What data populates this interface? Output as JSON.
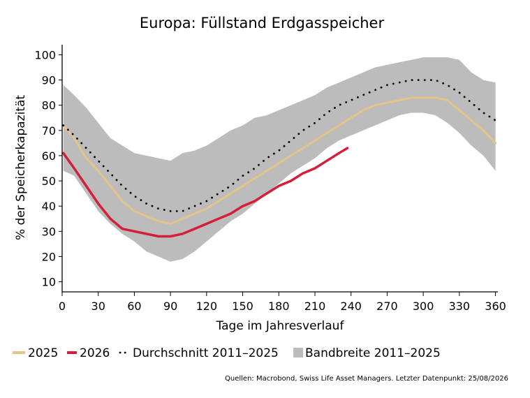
{
  "chart_data": {
    "type": "area",
    "title": "Europa: Füllstand Erdgasspeicher",
    "xlabel": "Tage im Jahresverlauf",
    "ylabel": "% der Speicherkapazität",
    "xlim": [
      0,
      362
    ],
    "ylim": [
      6,
      104
    ],
    "x_ticks": [
      0,
      30,
      60,
      90,
      120,
      150,
      180,
      210,
      240,
      270,
      300,
      330,
      360
    ],
    "y_ticks": [
      10,
      20,
      30,
      40,
      50,
      60,
      70,
      80,
      90,
      100
    ],
    "grid": false,
    "legend_position": "bottom",
    "band": {
      "name": "Bandbreite 2011–2025",
      "color": "#bcbcbc",
      "x": [
        1,
        10,
        20,
        30,
        40,
        50,
        60,
        70,
        80,
        90,
        100,
        110,
        120,
        130,
        140,
        150,
        160,
        170,
        180,
        190,
        200,
        210,
        220,
        230,
        240,
        250,
        260,
        270,
        280,
        290,
        300,
        310,
        320,
        330,
        340,
        350,
        360
      ],
      "lower": [
        54,
        52,
        45,
        38,
        33,
        29,
        26,
        22,
        20,
        18,
        19,
        22,
        26,
        30,
        34,
        37,
        41,
        45,
        49,
        53,
        56,
        59,
        63,
        66,
        68,
        70,
        72,
        74,
        76,
        77,
        77,
        76,
        73,
        69,
        64,
        60,
        54
      ],
      "upper": [
        88,
        84,
        79,
        73,
        67,
        64,
        61,
        60,
        59,
        58,
        61,
        62,
        64,
        67,
        70,
        72,
        75,
        76,
        78,
        80,
        82,
        84,
        87,
        89,
        91,
        93,
        95,
        96,
        97,
        98,
        99,
        99,
        99,
        98,
        93,
        90,
        89
      ]
    },
    "series": [
      {
        "name": "2025",
        "color": "#e3c489",
        "style": "solid",
        "x": [
          1,
          10,
          20,
          30,
          40,
          50,
          60,
          70,
          80,
          90,
          100,
          110,
          120,
          130,
          140,
          150,
          160,
          170,
          180,
          190,
          200,
          210,
          220,
          230,
          240,
          250,
          260,
          270,
          280,
          290,
          300,
          310,
          320,
          330,
          340,
          350,
          360
        ],
        "values": [
          72,
          67,
          59,
          54,
          48,
          42,
          38,
          36,
          34,
          33,
          35,
          37,
          39,
          42,
          45,
          48,
          51,
          54,
          57,
          60,
          63,
          66,
          69,
          72,
          75,
          78,
          80,
          81,
          82,
          83,
          83,
          83,
          82,
          78,
          74,
          70,
          65
        ]
      },
      {
        "name": "2026",
        "color": "#d41f38",
        "style": "solid",
        "x": [
          1,
          10,
          20,
          30,
          40,
          50,
          60,
          70,
          80,
          90,
          100,
          110,
          120,
          130,
          140,
          150,
          160,
          170,
          180,
          190,
          200,
          210,
          220,
          230,
          237
        ],
        "values": [
          61,
          55,
          48,
          41,
          35,
          31,
          30,
          29,
          28,
          28,
          29,
          31,
          33,
          35,
          37,
          40,
          42,
          45,
          48,
          50,
          53,
          55,
          58,
          61,
          63
        ]
      },
      {
        "name": "Durchschnitt 2011–2025",
        "color": "#000000",
        "style": "dotted",
        "x": [
          1,
          10,
          20,
          30,
          40,
          50,
          60,
          70,
          80,
          90,
          100,
          110,
          120,
          130,
          140,
          150,
          160,
          170,
          180,
          190,
          200,
          210,
          220,
          230,
          240,
          250,
          260,
          270,
          280,
          290,
          300,
          310,
          320,
          330,
          340,
          350,
          360
        ],
        "values": [
          72,
          68,
          63,
          58,
          53,
          48,
          44,
          41,
          39,
          38,
          38,
          40,
          42,
          45,
          48,
          52,
          55,
          59,
          62,
          66,
          70,
          73,
          77,
          80,
          82,
          84,
          86,
          88,
          89,
          90,
          90,
          90,
          88,
          85,
          81,
          77,
          74
        ]
      }
    ],
    "source": "Quellen: Macrobond, Swiss Life Asset Managers. Letzter Datenpunkt: 25/08/2026"
  }
}
